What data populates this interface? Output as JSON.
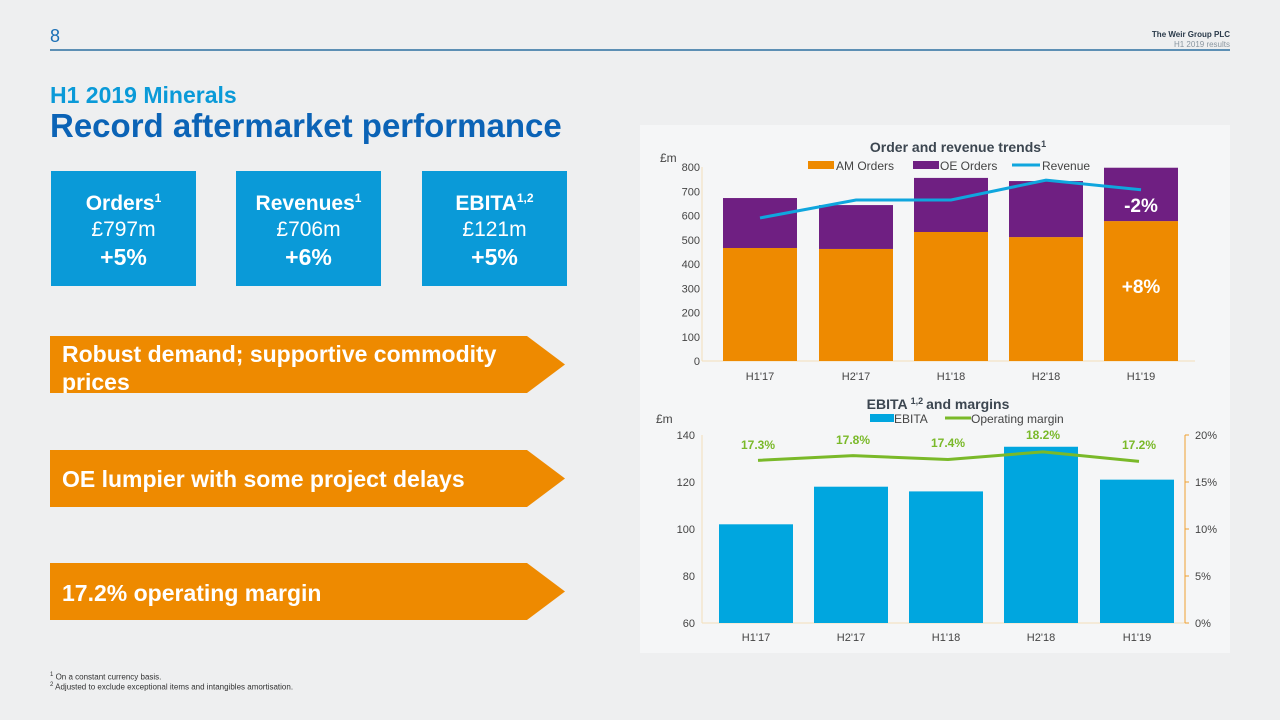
{
  "header": {
    "page_number": "8",
    "company": "The Weir Group PLC",
    "subtitle": "H1 2019 results"
  },
  "section": "H1 2019 Minerals",
  "title": "Record aftermarket performance",
  "kpis": [
    {
      "label": "Orders",
      "sup": "1",
      "value": "£797m",
      "change": "+5%"
    },
    {
      "label": "Revenues",
      "sup": "1",
      "value": "£706m",
      "change": "+6%"
    },
    {
      "label": "EBITA",
      "sup": "1,2",
      "value": "£121m",
      "change": "+5%"
    }
  ],
  "highlights": [
    "Robust demand; supportive commodity prices",
    "OE lumpier with some project delays",
    "17.2% operating margin"
  ],
  "footnotes": [
    {
      "mark": "1",
      "text": "On a constant currency basis."
    },
    {
      "mark": "2",
      "text": "Adjusted to exclude exceptional items and intangibles amortisation."
    }
  ],
  "colors": {
    "am": "#ee8a00",
    "oe": "#6f1f82",
    "revenue": "#0fa6de",
    "ebita": "#00a6df",
    "margin": "#7ab929",
    "brand": "#0b63b6"
  },
  "chart_data": [
    {
      "type": "bar",
      "stacked": true,
      "title": "Order and revenue trends",
      "title_sup": "1",
      "ylabel": "£m",
      "ylim": [
        0,
        800
      ],
      "yticks": [
        "0",
        "100",
        "200",
        "300",
        "400",
        "500",
        "600",
        "700",
        "800"
      ],
      "categories": [
        "H1'17",
        "H2'17",
        "H1'18",
        "H2'18",
        "H1'19"
      ],
      "series": [
        {
          "name": "AM Orders",
          "type": "bar",
          "values": [
            466,
            462,
            532,
            511,
            577
          ]
        },
        {
          "name": "OE Orders",
          "type": "bar",
          "values": [
            206,
            181,
            223,
            231,
            220
          ]
        },
        {
          "name": "Revenue",
          "type": "line",
          "values": [
            590,
            664,
            664,
            746,
            706
          ]
        }
      ],
      "annotations": [
        "-2%",
        "+8%"
      ],
      "legend": "top"
    },
    {
      "type": "bar",
      "title": "EBITA",
      "title_sup": "1,2",
      "title_rest": "and margins",
      "ylabel": "£m",
      "ylim": [
        60,
        140
      ],
      "yticks": [
        "60",
        "80",
        "100",
        "120",
        "140"
      ],
      "y2lim": [
        0,
        20
      ],
      "y2ticks": [
        "0%",
        "5%",
        "10%",
        "15%",
        "20%"
      ],
      "categories": [
        "H1'17",
        "H2'17",
        "H1'18",
        "H2'18",
        "H1'19"
      ],
      "series": [
        {
          "name": "EBITA",
          "type": "bar",
          "values": [
            102,
            118,
            116,
            135,
            121
          ]
        },
        {
          "name": "Operating margin",
          "type": "line",
          "axis": "right",
          "values": [
            17.3,
            17.8,
            17.4,
            18.2,
            17.2
          ],
          "labels": [
            "17.3%",
            "17.8%",
            "17.4%",
            "18.2%",
            "17.2%"
          ]
        }
      ],
      "legend": "top"
    }
  ]
}
